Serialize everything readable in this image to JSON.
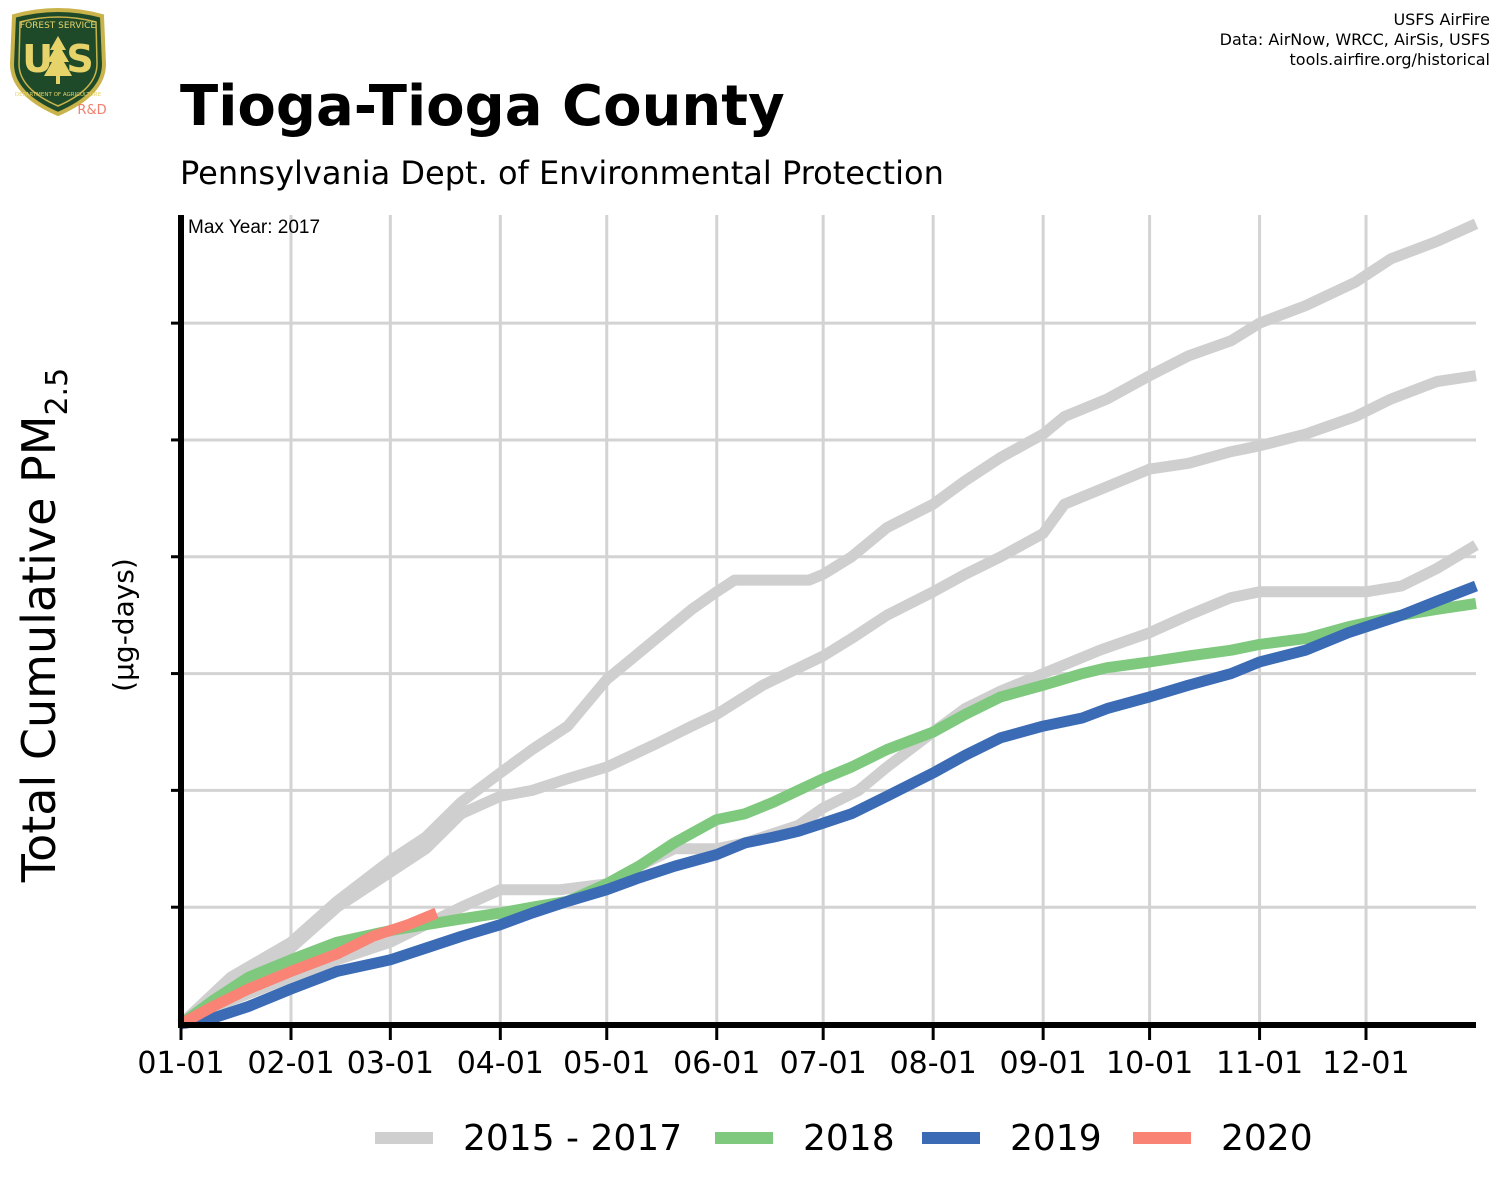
{
  "header": {
    "title": "Tioga-Tioga County",
    "subtitle": "Pennsylvania Dept. of Environmental Protection",
    "credits": [
      "USFS AirFire",
      "Data: AirNow, WRCC, AirSis, USFS",
      "tools.airfire.org/historical"
    ]
  },
  "logo": {
    "top_text": "FOREST SERVICE",
    "letters": "U S",
    "bottom_text": "DEPARTMENT OF AGRICULTURE",
    "tag": "R&D"
  },
  "colors": {
    "historical": "#cfcfcf",
    "y2018": "#7ec97e",
    "y2019": "#3b6bb5",
    "y2020": "#f98375",
    "grid": "#d3d3d3",
    "axis": "#000000"
  },
  "chart_data": {
    "type": "line",
    "title": "Tioga-Tioga County",
    "subtitle": "Pennsylvania Dept. of Environmental Protection",
    "ylabel_main": "Total Cumulative PM",
    "ylabel_sub": "2.5",
    "ylabel_units": "(µg-days)",
    "annotation": "Max Year: 2017",
    "x_ticks": [
      "01-01",
      "02-01",
      "03-01",
      "04-01",
      "05-01",
      "06-01",
      "07-01",
      "08-01",
      "09-01",
      "10-01",
      "11-01",
      "12-01"
    ],
    "x_tick_days": [
      1,
      32,
      60,
      91,
      121,
      152,
      182,
      213,
      244,
      274,
      305,
      335
    ],
    "xlim": [
      1,
      366
    ],
    "ylim": [
      0,
      6.9
    ],
    "y_tick_labels_shown": false,
    "grid": true,
    "legend_position": "bottom",
    "legend": [
      {
        "label": "2015 - 2017",
        "color_key": "historical"
      },
      {
        "label": "2018",
        "color_key": "y2018"
      },
      {
        "label": "2019",
        "color_key": "y2019"
      },
      {
        "label": "2020",
        "color_key": "y2020"
      }
    ],
    "series": [
      {
        "color_key": "historical",
        "x": [
          1,
          15,
          32,
          45,
          60,
          70,
          80,
          91,
          100,
          110,
          121,
          135,
          145,
          152,
          157,
          160,
          178,
          182,
          190,
          200,
          213,
          222,
          232,
          244,
          250,
          262,
          274,
          285,
          297,
          305,
          318,
          332,
          342,
          355,
          366
        ],
        "y": [
          0,
          0.4,
          0.7,
          1.05,
          1.4,
          1.6,
          1.9,
          2.15,
          2.35,
          2.55,
          2.95,
          3.3,
          3.55,
          3.7,
          3.8,
          3.8,
          3.8,
          3.85,
          4.0,
          4.25,
          4.45,
          4.65,
          4.85,
          5.05,
          5.2,
          5.35,
          5.55,
          5.72,
          5.85,
          6.0,
          6.15,
          6.35,
          6.55,
          6.7,
          6.85
        ]
      },
      {
        "color_key": "historical",
        "x": [
          1,
          15,
          32,
          45,
          60,
          70,
          80,
          91,
          100,
          110,
          121,
          135,
          145,
          152,
          165,
          182,
          190,
          200,
          213,
          222,
          232,
          244,
          250,
          262,
          274,
          285,
          297,
          305,
          318,
          332,
          342,
          355,
          366
        ],
        "y": [
          0,
          0.35,
          0.65,
          1.0,
          1.3,
          1.5,
          1.8,
          1.95,
          2.0,
          2.1,
          2.2,
          2.4,
          2.55,
          2.65,
          2.9,
          3.15,
          3.3,
          3.5,
          3.7,
          3.85,
          4.0,
          4.2,
          4.45,
          4.6,
          4.75,
          4.8,
          4.9,
          4.95,
          5.05,
          5.2,
          5.35,
          5.5,
          5.55
        ]
      },
      {
        "color_key": "historical",
        "x": [
          1,
          15,
          32,
          45,
          60,
          70,
          80,
          91,
          95,
          108,
          121,
          130,
          140,
          152,
          160,
          175,
          182,
          192,
          200,
          213,
          222,
          232,
          244,
          260,
          274,
          285,
          297,
          305,
          320,
          335,
          345,
          355,
          366
        ],
        "y": [
          0,
          0.2,
          0.4,
          0.55,
          0.7,
          0.85,
          1.0,
          1.15,
          1.15,
          1.15,
          1.2,
          1.35,
          1.5,
          1.5,
          1.55,
          1.7,
          1.85,
          2.0,
          2.2,
          2.5,
          2.7,
          2.85,
          3.0,
          3.2,
          3.35,
          3.5,
          3.65,
          3.7,
          3.7,
          3.7,
          3.75,
          3.9,
          4.1
        ]
      },
      {
        "color_key": "y2018",
        "x": [
          1,
          10,
          20,
          32,
          45,
          60,
          70,
          80,
          91,
          100,
          110,
          121,
          130,
          140,
          152,
          160,
          168,
          175,
          182,
          190,
          200,
          213,
          222,
          232,
          244,
          255,
          262,
          274,
          285,
          297,
          305,
          318,
          330,
          345,
          355,
          366
        ],
        "y": [
          0,
          0.2,
          0.4,
          0.55,
          0.7,
          0.8,
          0.85,
          0.9,
          0.95,
          1.0,
          1.05,
          1.2,
          1.35,
          1.55,
          1.75,
          1.8,
          1.9,
          2.0,
          2.1,
          2.2,
          2.35,
          2.5,
          2.65,
          2.8,
          2.9,
          3.0,
          3.05,
          3.1,
          3.15,
          3.2,
          3.25,
          3.3,
          3.4,
          3.5,
          3.55,
          3.6
        ]
      },
      {
        "color_key": "y2019",
        "x": [
          1,
          10,
          20,
          32,
          45,
          60,
          70,
          80,
          91,
          100,
          110,
          121,
          130,
          140,
          152,
          160,
          168,
          175,
          182,
          190,
          200,
          213,
          222,
          232,
          244,
          255,
          262,
          274,
          285,
          297,
          305,
          318,
          330,
          345,
          355,
          366
        ],
        "y": [
          0,
          0.05,
          0.15,
          0.3,
          0.45,
          0.55,
          0.65,
          0.75,
          0.85,
          0.95,
          1.05,
          1.15,
          1.25,
          1.35,
          1.45,
          1.55,
          1.6,
          1.65,
          1.72,
          1.8,
          1.95,
          2.15,
          2.3,
          2.45,
          2.55,
          2.62,
          2.7,
          2.8,
          2.9,
          3.0,
          3.1,
          3.2,
          3.35,
          3.5,
          3.62,
          3.75
        ]
      },
      {
        "color_key": "y2020",
        "x": [
          1,
          10,
          20,
          32,
          45,
          55,
          65,
          73
        ],
        "y": [
          0,
          0.15,
          0.3,
          0.45,
          0.6,
          0.75,
          0.85,
          0.95
        ]
      }
    ]
  }
}
